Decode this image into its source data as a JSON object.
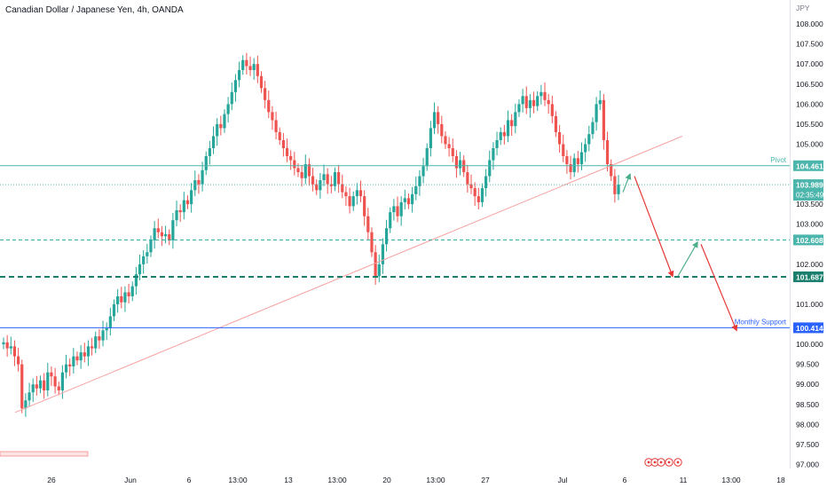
{
  "header": {
    "title": "Canadian Dollar / Japanese Yen, 4h, OANDA"
  },
  "chart_data": {
    "type": "candlestick",
    "currency_label": "JPY",
    "ylim": [
      96.9,
      108.6
    ],
    "y_ticks": [
      "108.000",
      "107.500",
      "107.000",
      "106.500",
      "106.000",
      "105.500",
      "105.000",
      "104.500",
      "104.000",
      "103.500",
      "103.000",
      "102.500",
      "102.000",
      "101.500",
      "101.000",
      "100.500",
      "100.000",
      "99.500",
      "99.000",
      "98.500",
      "98.000",
      "97.500",
      "97.000"
    ],
    "x_ticks": [
      "26",
      "Jun",
      "6",
      "13:00",
      "13",
      "13:00",
      "20",
      "13:00",
      "27",
      "Jul",
      "6",
      "11",
      "13:00",
      "18"
    ],
    "colors": {
      "up": "#26a69a",
      "down": "#ef5350",
      "trendline": "#f7a1a1",
      "pivot": "#4db6ac",
      "support": "#2962ff",
      "dashed": "#26a69a",
      "arrow_down": "#e53935",
      "arrow_up": "#4caf8a"
    },
    "candles_close": [
      100.05,
      99.9,
      99.95,
      99.7,
      99.5,
      98.4,
      98.6,
      98.8,
      99.0,
      98.9,
      99.1,
      98.85,
      99.3,
      99.2,
      98.95,
      98.85,
      99.3,
      99.5,
      99.45,
      99.7,
      99.6,
      99.8,
      99.7,
      99.95,
      99.9,
      100.2,
      100.1,
      100.35,
      100.4,
      100.7,
      101.0,
      101.2,
      101.05,
      101.3,
      101.2,
      101.45,
      101.75,
      102.0,
      102.2,
      102.3,
      102.6,
      102.9,
      102.8,
      102.7,
      102.75,
      102.6,
      103.1,
      103.35,
      103.3,
      103.6,
      103.5,
      103.85,
      104.1,
      104.0,
      104.35,
      104.7,
      104.9,
      105.2,
      105.5,
      105.4,
      105.75,
      106.0,
      106.3,
      106.6,
      106.85,
      107.1,
      106.95,
      106.85,
      107.0,
      106.7,
      106.4,
      106.1,
      105.8,
      105.6,
      105.3,
      105.1,
      104.9,
      104.7,
      104.6,
      104.4,
      104.3,
      104.15,
      104.5,
      104.2,
      104.0,
      103.85,
      104.1,
      104.25,
      104.0,
      103.95,
      104.3,
      104.0,
      103.8,
      103.7,
      103.45,
      103.7,
      103.85,
      103.7,
      103.2,
      102.8,
      102.3,
      101.7,
      102.0,
      102.5,
      102.9,
      103.3,
      103.45,
      103.2,
      103.55,
      103.65,
      103.5,
      103.75,
      103.95,
      104.2,
      104.45,
      104.9,
      105.4,
      105.8,
      105.5,
      105.2,
      105.0,
      104.9,
      104.7,
      104.4,
      104.6,
      104.3,
      104.0,
      103.9,
      103.7,
      103.55,
      103.9,
      104.2,
      104.6,
      104.9,
      105.1,
      105.3,
      105.2,
      105.6,
      105.45,
      105.8,
      106.0,
      106.2,
      105.9,
      106.1,
      105.95,
      106.2,
      106.3,
      106.1,
      106.0,
      105.7,
      105.3,
      105.0,
      104.7,
      104.5,
      104.3,
      104.65,
      104.5,
      104.8,
      105.0,
      105.25,
      105.55,
      106.0,
      106.1,
      105.1,
      104.5,
      104.2,
      103.75,
      103.99
    ],
    "open_first": 100.0,
    "horizontal_lines": [
      {
        "name": "Pivot",
        "value": 104.461,
        "label": "104.461",
        "style": "solid"
      },
      {
        "name": "",
        "value": 103.989,
        "label": "103.989",
        "sublabel": "02:35:49",
        "style": "dotted"
      },
      {
        "name": "",
        "value": 102.608,
        "label": "102.608",
        "style": "dashed"
      },
      {
        "name": "",
        "value": 101.687,
        "label": "101.687",
        "style": "dashed-bold"
      },
      {
        "name": "Monthly Support",
        "value": 100.414,
        "label": "100.414",
        "style": "solid"
      }
    ],
    "trendline": {
      "from": [
        0,
        98.3
      ],
      "to": [
        1,
        105.2
      ]
    },
    "projection_path": [
      104.2,
      101.7,
      102.55,
      100.35
    ],
    "grid": false,
    "legend": "none"
  }
}
